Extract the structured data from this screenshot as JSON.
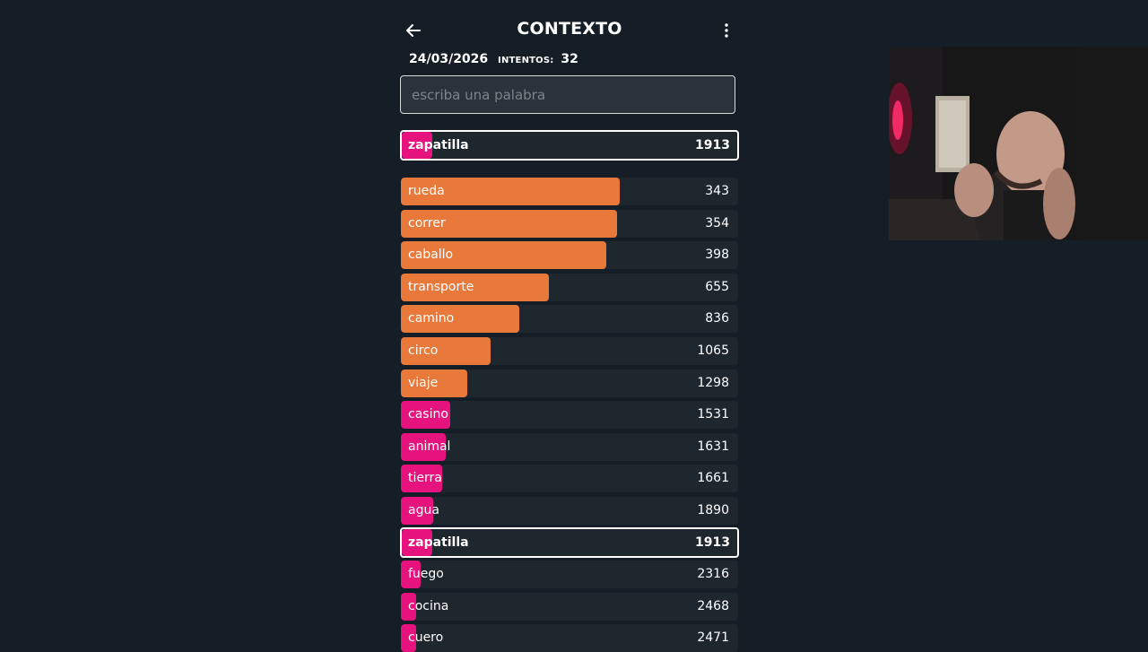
{
  "header": {
    "title": "CONTEXTO"
  },
  "meta": {
    "date": "24/03/2026",
    "attempts_label": "INTENTOS:",
    "attempts": "32"
  },
  "search": {
    "placeholder": "escriba una palabra",
    "value": ""
  },
  "last_guess": {
    "word": "zapatilla",
    "rank": "1913",
    "fill": 0.09,
    "color": "#e6127e"
  },
  "colors": {
    "orange": "#e8793a",
    "pink": "#e6127e",
    "row_bg": "#1e262e",
    "page_bg": "#151d26"
  },
  "guesses": [
    {
      "word": "rueda",
      "rank": "343",
      "fill": 0.65,
      "color": "#e8793a",
      "current": false
    },
    {
      "word": "correr",
      "rank": "354",
      "fill": 0.64,
      "color": "#e8793a",
      "current": false
    },
    {
      "word": "caballo",
      "rank": "398",
      "fill": 0.61,
      "color": "#e8793a",
      "current": false
    },
    {
      "word": "transporte",
      "rank": "655",
      "fill": 0.44,
      "color": "#e8793a",
      "current": false
    },
    {
      "word": "camino",
      "rank": "836",
      "fill": 0.35,
      "color": "#e8793a",
      "current": false
    },
    {
      "word": "circo",
      "rank": "1065",
      "fill": 0.265,
      "color": "#e8793a",
      "current": false
    },
    {
      "word": "viaje",
      "rank": "1298",
      "fill": 0.197,
      "color": "#e8793a",
      "current": false
    },
    {
      "word": "casino",
      "rank": "1531",
      "fill": 0.146,
      "color": "#e6127e",
      "current": false
    },
    {
      "word": "animal",
      "rank": "1631",
      "fill": 0.133,
      "color": "#e6127e",
      "current": false
    },
    {
      "word": "tierra",
      "rank": "1661",
      "fill": 0.122,
      "color": "#e6127e",
      "current": false
    },
    {
      "word": "agua",
      "rank": "1890",
      "fill": 0.095,
      "color": "#e6127e",
      "current": false
    },
    {
      "word": "zapatilla",
      "rank": "1913",
      "fill": 0.09,
      "color": "#e6127e",
      "current": true
    },
    {
      "word": "fuego",
      "rank": "2316",
      "fill": 0.058,
      "color": "#e6127e",
      "current": false
    },
    {
      "word": "cocina",
      "rank": "2468",
      "fill": 0.045,
      "color": "#e6127e",
      "current": false
    },
    {
      "word": "cuero",
      "rank": "2471",
      "fill": 0.044,
      "color": "#e6127e",
      "current": false
    }
  ],
  "icons": {
    "back": "arrow-left-icon",
    "menu": "more-vertical-icon"
  }
}
